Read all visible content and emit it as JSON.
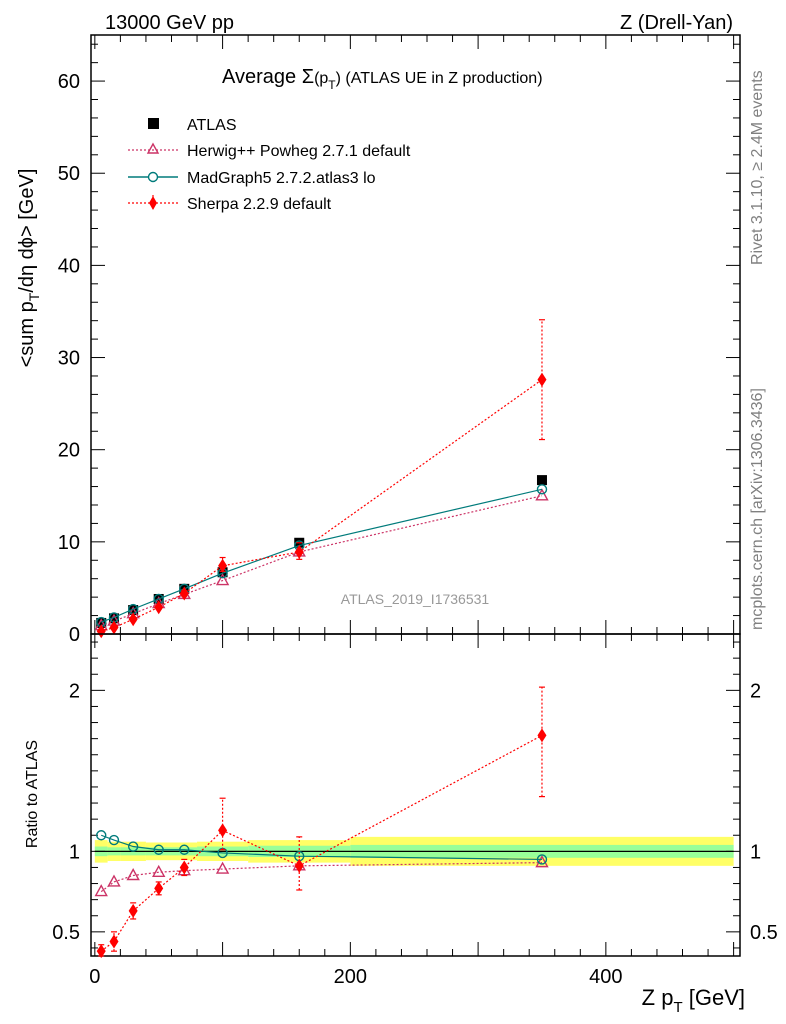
{
  "header": {
    "left": "13000 GeV pp",
    "right": "Z (Drell-Yan)"
  },
  "side_labels": {
    "rivet": "Rivet 3.1.10, ≥ 2.4M events",
    "mcplots": "mcplots.cern.ch [arXiv:1306.3436]"
  },
  "colors": {
    "atlas": "#000000",
    "herwig": "#cc3366",
    "madgraph": "#007b7b",
    "sherpa": "#ff0000",
    "band_inner": "#99ff99",
    "band_outer": "#ffff66"
  },
  "chart_data": [
    {
      "type": "scatter",
      "title": "Average Σ(p_T) (ATLAS UE in Z production)",
      "title_parts": {
        "pre": "Average ",
        "sigma": "Σ",
        "arg": "(p",
        "sub": "T",
        "post": ")",
        "rest": " (ATLAS UE in Z production)"
      },
      "ylabel": "<sum p_T/dη dϕ> [GeV]",
      "ylabel_parts": {
        "pre": "<sum p",
        "sub": "T",
        "post": "/dη dϕ> [GeV]"
      },
      "xlim": [
        -3,
        505
      ],
      "ylim": [
        0,
        65
      ],
      "yticks": [
        0,
        10,
        20,
        30,
        40,
        50,
        60
      ],
      "watermark": "ATLAS_2019_I1736531",
      "legend_position": "top-left",
      "series": [
        {
          "name": "ATLAS",
          "marker": "square",
          "x": [
            5,
            15,
            30,
            50,
            70,
            100,
            160,
            350
          ],
          "y": [
            1.2,
            1.7,
            2.6,
            3.8,
            4.9,
            6.7,
            9.9,
            16.7
          ]
        },
        {
          "name": "Herwig++ Powheg 2.7.1 default",
          "marker": "open-triangle",
          "line": "dotted",
          "x": [
            5,
            15,
            30,
            50,
            70,
            100,
            160,
            350
          ],
          "y": [
            0.9,
            1.4,
            2.2,
            3.3,
            4.3,
            5.8,
            8.9,
            15.0
          ]
        },
        {
          "name": "MadGraph5 2.7.2.atlas3 lo",
          "marker": "open-circle",
          "line": "solid",
          "x": [
            5,
            15,
            30,
            50,
            70,
            100,
            160,
            350
          ],
          "y": [
            1.3,
            1.8,
            2.7,
            3.8,
            4.9,
            6.6,
            9.6,
            15.7
          ]
        },
        {
          "name": "Sherpa 2.2.9 default",
          "marker": "diamond",
          "line": "dotted",
          "x": [
            5,
            15,
            30,
            50,
            70,
            100,
            160,
            350
          ],
          "y": [
            0.3,
            0.7,
            1.6,
            2.9,
            4.4,
            7.4,
            8.9,
            27.6
          ],
          "err_lo": [
            0.1,
            0.15,
            0.2,
            0.2,
            0.3,
            0.6,
            0.8,
            6.5
          ],
          "err_hi": [
            0.1,
            0.15,
            0.2,
            0.2,
            0.3,
            0.9,
            1.0,
            6.5
          ]
        }
      ]
    },
    {
      "type": "scatter",
      "ylabel": "Ratio to ATLAS",
      "xlabel": "Z p_T [GeV]",
      "xlabel_parts": {
        "pre": "Z p",
        "sub": "T",
        "post": " [GeV]"
      },
      "xlim": [
        -3,
        505
      ],
      "ylim": [
        0.35,
        2.35
      ],
      "yticks": [
        0.5,
        1,
        2
      ],
      "ytick_labels": [
        "0.5",
        "1",
        "2"
      ],
      "xticks": [
        0,
        200,
        400
      ],
      "xtick_labels": [
        "0",
        "200",
        "400"
      ],
      "reference_band": {
        "edges": [
          0,
          10,
          20,
          40,
          60,
          80,
          120,
          200,
          500
        ],
        "inner": [
          0.03,
          0.025,
          0.025,
          0.025,
          0.025,
          0.03,
          0.035,
          0.04
        ],
        "outer": [
          0.07,
          0.06,
          0.06,
          0.055,
          0.055,
          0.06,
          0.07,
          0.09
        ]
      },
      "series": [
        {
          "name": "Herwig++ Powheg 2.7.1 default",
          "x": [
            5,
            15,
            30,
            50,
            70,
            100,
            160,
            350
          ],
          "y": [
            0.75,
            0.81,
            0.85,
            0.87,
            0.88,
            0.89,
            0.91,
            0.93
          ]
        },
        {
          "name": "MadGraph5 2.7.2.atlas3 lo",
          "x": [
            5,
            15,
            30,
            50,
            70,
            100,
            160,
            350
          ],
          "y": [
            1.1,
            1.07,
            1.03,
            1.01,
            1.01,
            0.99,
            0.97,
            0.95
          ]
        },
        {
          "name": "Sherpa 2.2.9 default",
          "x": [
            5,
            15,
            30,
            50,
            70,
            100,
            160,
            350
          ],
          "y": [
            0.38,
            0.44,
            0.63,
            0.77,
            0.9,
            1.13,
            0.91,
            1.72
          ],
          "err_lo": [
            0.04,
            0.06,
            0.05,
            0.04,
            0.05,
            0.12,
            0.15,
            0.38
          ],
          "err_hi": [
            0.04,
            0.06,
            0.05,
            0.04,
            0.05,
            0.2,
            0.18,
            0.3
          ]
        }
      ]
    }
  ]
}
